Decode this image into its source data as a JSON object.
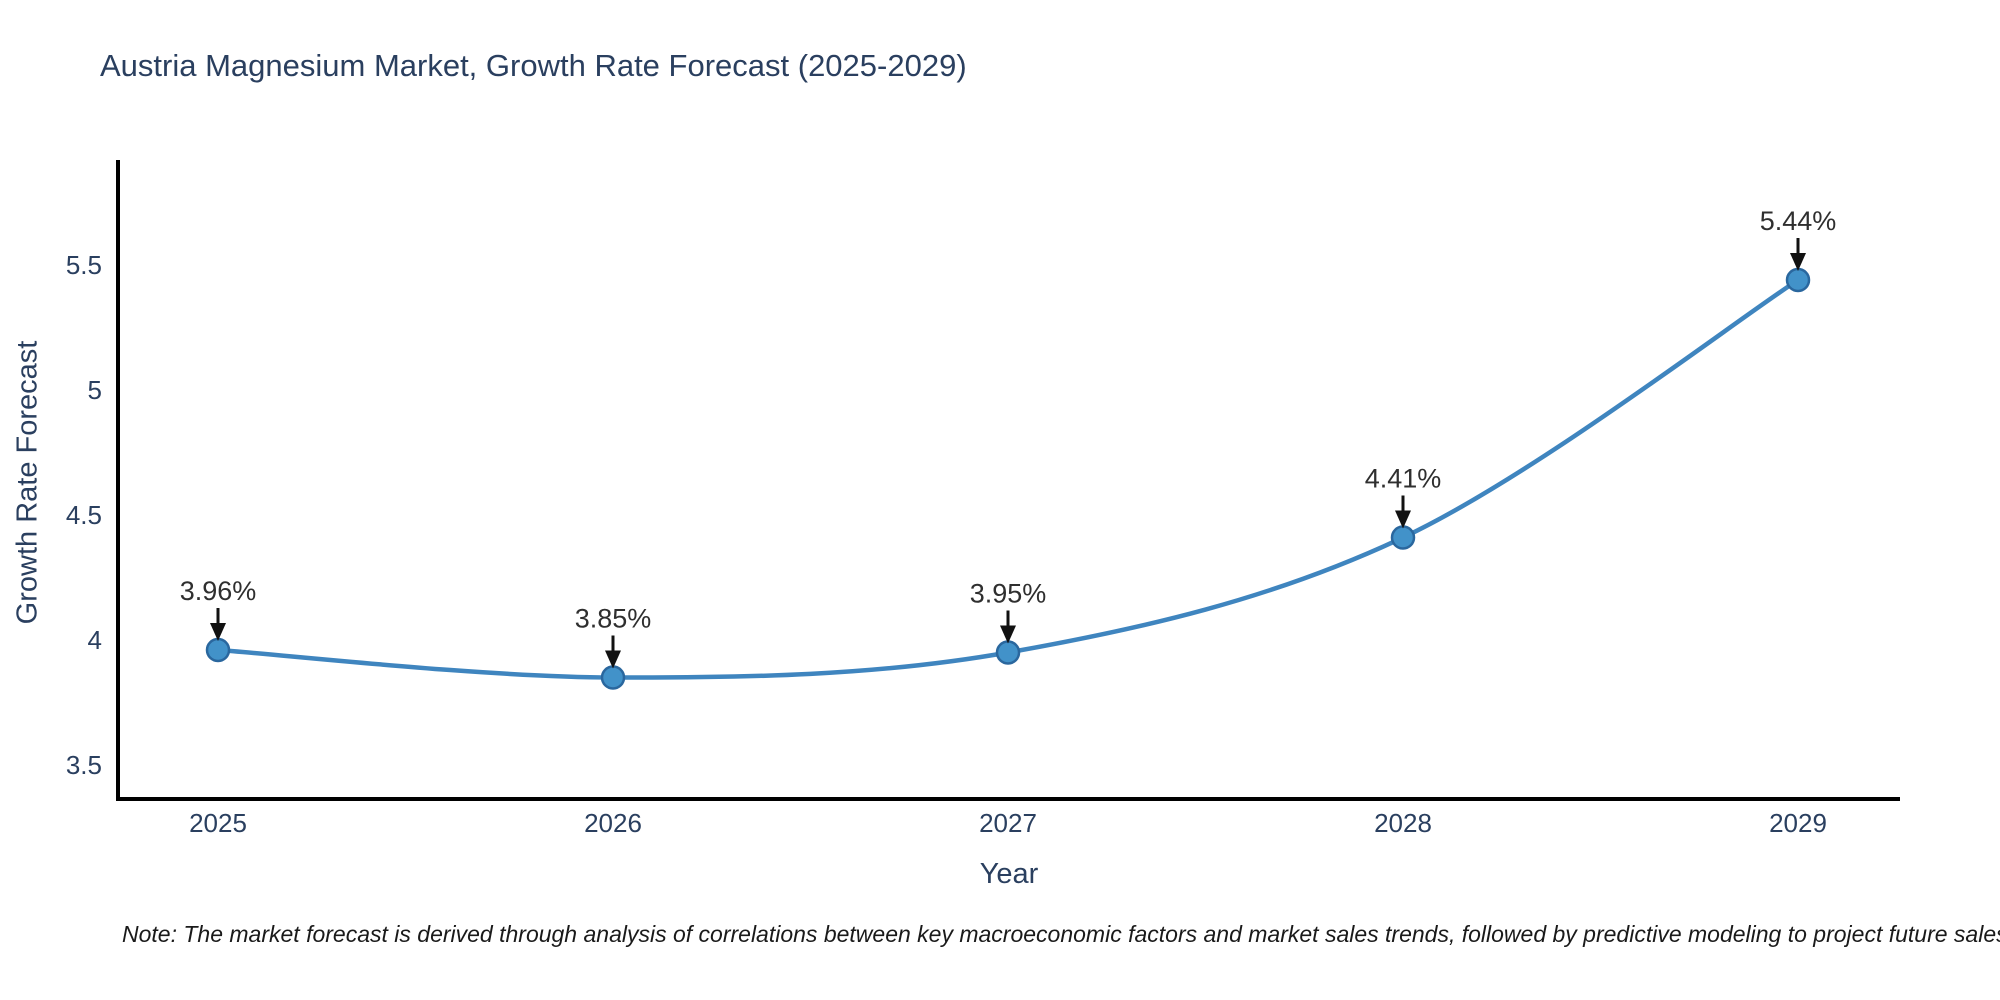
{
  "title": "Austria Magnesium Market, Growth Rate Forecast (2025-2029)",
  "note": "Note: The market forecast is derived through analysis of correlations between key macroeconomic factors and market sales trends, followed by predictive modeling to project future sales",
  "chart_data": {
    "type": "line",
    "title": "Austria Magnesium Market, Growth Rate Forecast (2025-2029)",
    "xlabel": "Year",
    "ylabel": "Growth Rate Forecast",
    "x": [
      "2025",
      "2026",
      "2027",
      "2028",
      "2029"
    ],
    "y": [
      3.96,
      3.85,
      3.95,
      4.41,
      5.44
    ],
    "point_labels": [
      "3.96%",
      "3.85%",
      "3.95%",
      "4.41%",
      "5.44%"
    ],
    "yticks": [
      3.5,
      4,
      4.5,
      5,
      5.5
    ],
    "ylim": [
      3.36,
      5.95
    ],
    "grid": false,
    "legend_position": "none",
    "line_shape": "spline",
    "annotation_style": "black-down-arrow"
  },
  "colors": {
    "line": "#3f85bf",
    "marker_fill": "#4292c9",
    "marker_edge": "#2a679e",
    "axis": "#000000",
    "tick_label": "#2a3f5f",
    "annotation_text": "#2f2f2f",
    "annotation_arrow": "#111111",
    "title": "#2a3f5f"
  }
}
